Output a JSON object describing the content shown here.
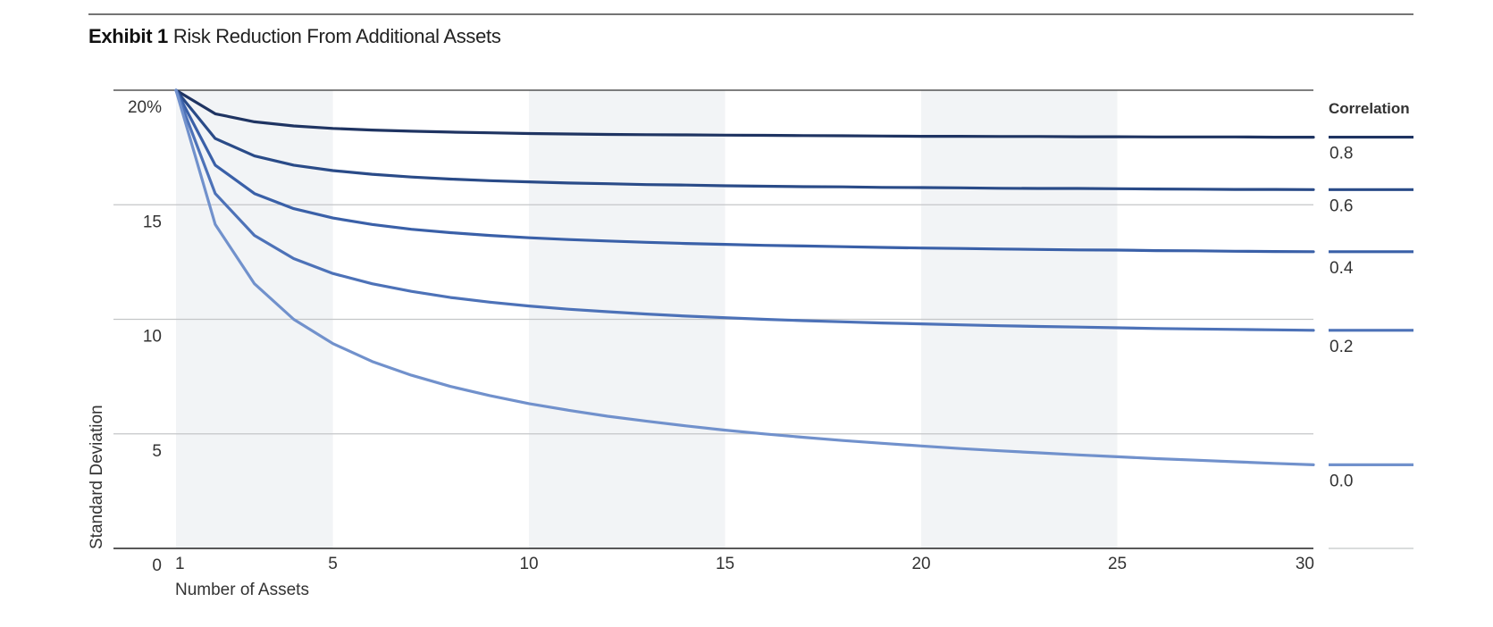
{
  "header": {
    "exhibit": "Exhibit 1",
    "title": "Risk Reduction From Additional Assets"
  },
  "chart_data": {
    "type": "line",
    "title": "Exhibit 1 Risk Reduction From Additional Assets",
    "xlabel": "Number of Assets",
    "ylabel": "Standard Deviation",
    "xlim": [
      1,
      30
    ],
    "ylim": [
      0,
      20
    ],
    "x_ticks": [
      1,
      5,
      10,
      15,
      20,
      25,
      30
    ],
    "y_ticks": [
      0,
      5,
      10,
      15,
      20
    ],
    "y_tick_labels": [
      "0",
      "5",
      "10",
      "15",
      "20%"
    ],
    "shaded_bands": [
      [
        1,
        5
      ],
      [
        10,
        15
      ],
      [
        20,
        25
      ]
    ],
    "grid": true,
    "legend": {
      "title": "Correlation",
      "placement": "right"
    },
    "x": [
      1,
      2,
      3,
      4,
      5,
      6,
      7,
      8,
      9,
      10,
      11,
      12,
      13,
      14,
      15,
      16,
      17,
      18,
      19,
      20,
      21,
      22,
      23,
      24,
      25,
      26,
      27,
      28,
      29,
      30
    ],
    "series": [
      {
        "name": "0.8",
        "color": "#1f3462",
        "values": [
          20.0,
          18.97,
          18.62,
          18.44,
          18.33,
          18.26,
          18.21,
          18.17,
          18.14,
          18.11,
          18.09,
          18.07,
          18.06,
          18.05,
          18.04,
          18.03,
          18.02,
          18.01,
          18.0,
          17.99,
          17.99,
          17.98,
          17.98,
          17.97,
          17.97,
          17.96,
          17.96,
          17.96,
          17.95,
          17.95
        ]
      },
      {
        "name": "0.6",
        "color": "#2a4b88",
        "values": [
          20.0,
          17.89,
          17.13,
          16.73,
          16.49,
          16.33,
          16.21,
          16.12,
          16.05,
          16.0,
          15.95,
          15.92,
          15.88,
          15.86,
          15.83,
          15.81,
          15.79,
          15.78,
          15.76,
          15.75,
          15.74,
          15.72,
          15.71,
          15.71,
          15.7,
          15.69,
          15.68,
          15.67,
          15.67,
          15.66
        ]
      },
      {
        "name": "0.4",
        "color": "#3a60a8",
        "values": [
          20.0,
          16.73,
          15.49,
          14.83,
          14.42,
          14.14,
          13.93,
          13.78,
          13.66,
          13.56,
          13.48,
          13.42,
          13.36,
          13.31,
          13.27,
          13.23,
          13.2,
          13.17,
          13.14,
          13.11,
          13.09,
          13.07,
          13.05,
          13.03,
          13.02,
          13.0,
          12.99,
          12.97,
          12.96,
          12.95
        ]
      },
      {
        "name": "0.2",
        "color": "#4d72b8",
        "values": [
          20.0,
          15.49,
          13.66,
          12.65,
          12.0,
          11.55,
          11.22,
          10.95,
          10.75,
          10.58,
          10.44,
          10.33,
          10.23,
          10.14,
          10.07,
          10.0,
          9.94,
          9.89,
          9.84,
          9.8,
          9.76,
          9.72,
          9.69,
          9.66,
          9.63,
          9.6,
          9.58,
          9.56,
          9.54,
          9.52
        ]
      },
      {
        "name": "0.0",
        "color": "#7191cc",
        "values": [
          20.0,
          14.14,
          11.55,
          10.0,
          8.94,
          8.16,
          7.56,
          7.07,
          6.67,
          6.32,
          6.03,
          5.77,
          5.55,
          5.35,
          5.16,
          5.0,
          4.85,
          4.71,
          4.59,
          4.47,
          4.36,
          4.26,
          4.17,
          4.08,
          4.0,
          3.92,
          3.85,
          3.78,
          3.71,
          3.65
        ]
      }
    ]
  }
}
